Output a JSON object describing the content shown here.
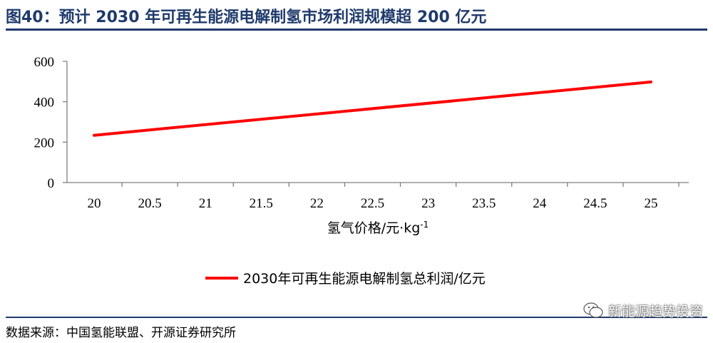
{
  "figure": {
    "title": "图40：预计 2030 年可再生能源电解制氢市场利润规模超 200 亿元",
    "source": "数据来源：中国氢能联盟、开源证券研究所",
    "watermark": "新能源趋势投资"
  },
  "chart_data": {
    "type": "line",
    "x": [
      20,
      25
    ],
    "x_ticks": [
      "20",
      "20.5",
      "21",
      "21.5",
      "22",
      "22.5",
      "23",
      "23.5",
      "24",
      "24.5",
      "25"
    ],
    "xlabel": "氢气价格/元·kg",
    "xlabel_superscript": "-1",
    "ylabel": "",
    "ylim": [
      0,
      600
    ],
    "y_ticks": [
      "0",
      "200",
      "400",
      "600"
    ],
    "grid": false,
    "legend_position": "bottom",
    "series": [
      {
        "name": "2030年可再生能源电解制氢总利润/亿元",
        "color": "#ff0000",
        "values": [
          234,
          498
        ]
      }
    ]
  }
}
